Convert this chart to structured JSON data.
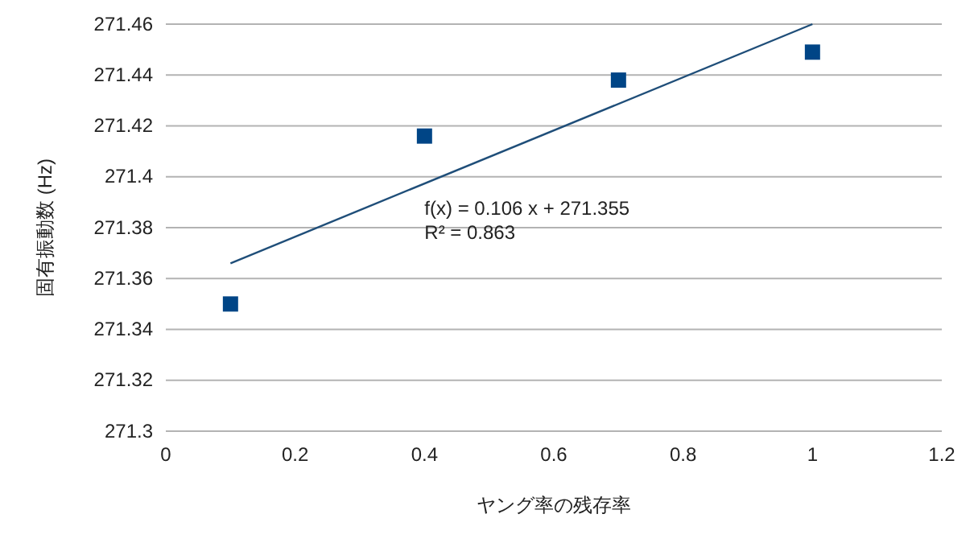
{
  "chart_data": {
    "type": "scatter",
    "xlabel": "ヤング率の残存率",
    "ylabel": "固有振動数 (Hz)",
    "x": [
      0.1,
      0.4,
      0.7,
      1.0
    ],
    "series": [
      {
        "color": "#004586",
        "marker": "square",
        "values": [
          271.35,
          271.416,
          271.438,
          271.449
        ]
      },
      {
        "type": "line",
        "color": "#1f4e79",
        "marker": "none",
        "x": [
          0.1,
          1.0
        ],
        "values": [
          271.366,
          271.46
        ]
      }
    ],
    "xlim": [
      0,
      1.2
    ],
    "xticks": [
      0,
      0.2,
      0.4,
      0.6,
      0.8,
      1,
      1.2
    ],
    "ylim": [
      271.3,
      271.46
    ],
    "yticks": [
      271.3,
      271.32,
      271.34,
      271.36,
      271.38,
      271.4,
      271.42,
      271.44,
      271.46
    ],
    "grid": "y",
    "annotations": [
      "f(x) = 0.106 x + 271.355",
      "R² = 0.863"
    ]
  }
}
